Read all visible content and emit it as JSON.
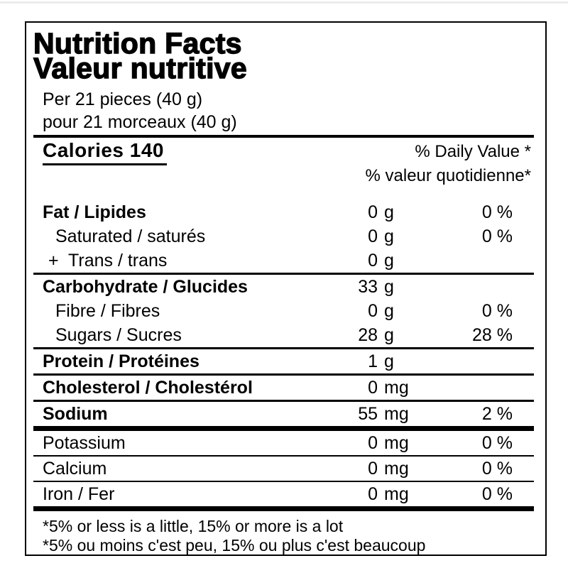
{
  "label": {
    "title_en": "Nutrition Facts",
    "title_fr": "Valeur nutritive",
    "serving_en": "Per 21 pieces (40 g)",
    "serving_fr": "pour 21 morceaux (40 g)",
    "calories": "Calories 140",
    "daily_value_en": "% Daily Value *",
    "daily_value_fr": "% valeur quotidienne*",
    "rows": [
      {
        "key": "fat",
        "name": "Fat / Lipides",
        "amount": "0",
        "unit": "g",
        "dv": "0 %",
        "bold": true,
        "indent": 0,
        "sep": "none"
      },
      {
        "key": "saturated",
        "name": "Saturated / saturés",
        "amount": "0",
        "unit": "g",
        "dv": "0 %",
        "bold": false,
        "indent": 1,
        "sep": "none"
      },
      {
        "key": "trans",
        "name": "+  Trans / trans",
        "amount": "0",
        "unit": "g",
        "dv": "",
        "bold": false,
        "indent": 2,
        "sep": "med"
      },
      {
        "key": "carbohydrate",
        "name": "Carbohydrate / Glucides",
        "amount": "33",
        "unit": "g",
        "dv": "",
        "bold": true,
        "indent": 0,
        "sep": "none"
      },
      {
        "key": "fibre",
        "name": "Fibre / Fibres",
        "amount": "0",
        "unit": "g",
        "dv": "0 %",
        "bold": false,
        "indent": 1,
        "sep": "none"
      },
      {
        "key": "sugars",
        "name": "Sugars / Sucres",
        "amount": "28",
        "unit": "g",
        "dv": "28 %",
        "bold": false,
        "indent": 1,
        "sep": "med"
      },
      {
        "key": "protein",
        "name": "Protein / Protéines",
        "amount": "1",
        "unit": "g",
        "dv": "",
        "bold": true,
        "indent": 0,
        "sep": "med"
      },
      {
        "key": "cholesterol",
        "name": "Cholesterol / Cholestérol",
        "amount": "0",
        "unit": "mg",
        "dv": "",
        "bold": true,
        "indent": 0,
        "sep": "med"
      },
      {
        "key": "sodium",
        "name": "Sodium",
        "amount": "55",
        "unit": "mg",
        "dv": "2 %",
        "bold": true,
        "indent": 0,
        "sep": "thick"
      },
      {
        "key": "potassium",
        "name": "Potassium",
        "amount": "0",
        "unit": "mg",
        "dv": "0 %",
        "bold": false,
        "indent": 0,
        "sep": "thin"
      },
      {
        "key": "calcium",
        "name": "Calcium",
        "amount": "0",
        "unit": "mg",
        "dv": "0 %",
        "bold": false,
        "indent": 0,
        "sep": "thin"
      },
      {
        "key": "iron",
        "name": "Iron / Fer",
        "amount": "0",
        "unit": "mg",
        "dv": "0 %",
        "bold": false,
        "indent": 0,
        "sep": "thick"
      }
    ],
    "footnote_en": "*5% or less is a little, 15% or more is a lot",
    "footnote_fr": "*5% ou moins c'est peu, 15% ou plus c'est beaucoup"
  }
}
